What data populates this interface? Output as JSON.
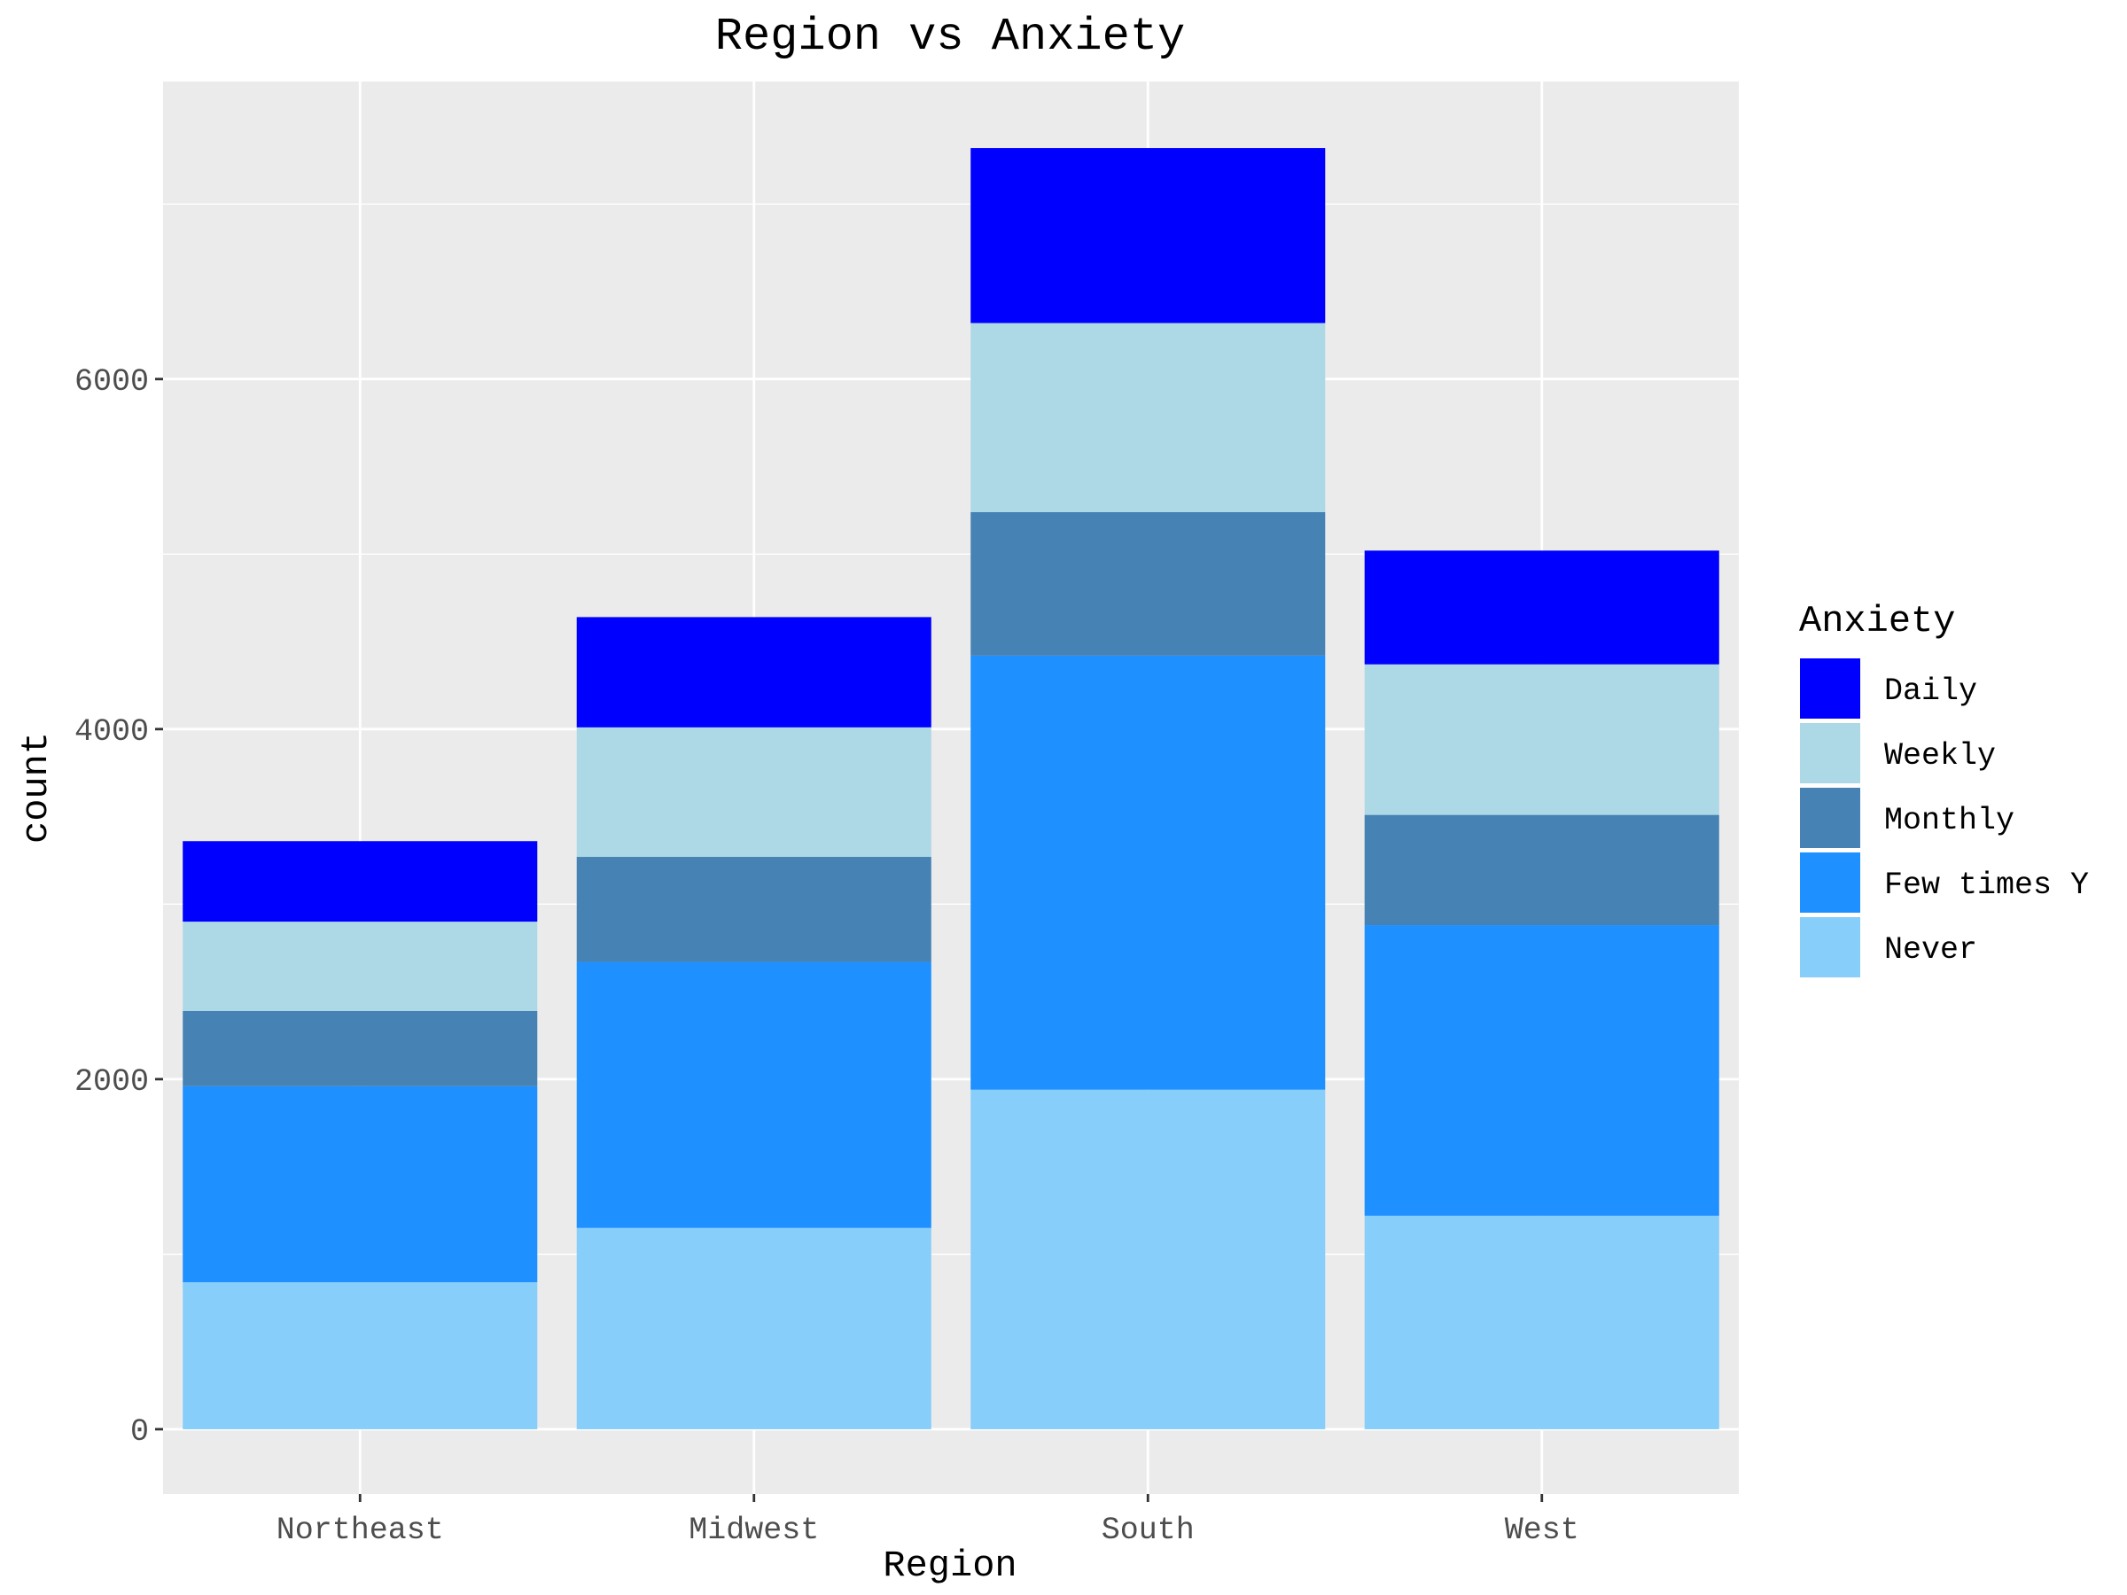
{
  "chart_data": {
    "type": "bar",
    "stacked": true,
    "title": "Region vs Anxiety",
    "xlabel": "Region",
    "ylabel": "count",
    "categories": [
      "Northeast",
      "Midwest",
      "South",
      "West"
    ],
    "ylim": [
      -370,
      7700
    ],
    "yticks": [
      0,
      2000,
      4000,
      6000
    ],
    "grid": true,
    "legend": {
      "title": "Anxiety",
      "position": "right",
      "order": [
        "Daily",
        "Weekly",
        "Monthly",
        "Few times Y",
        "Never"
      ]
    },
    "series": [
      {
        "name": "Never",
        "color": "#87CEFA",
        "values": [
          840,
          1150,
          1940,
          1220
        ]
      },
      {
        "name": "Few times Y",
        "color": "#1E90FF",
        "values": [
          1120,
          1520,
          2480,
          1660
        ]
      },
      {
        "name": "Monthly",
        "color": "#4682B4",
        "values": [
          430,
          600,
          820,
          630
        ]
      },
      {
        "name": "Weekly",
        "color": "#ADD8E6",
        "values": [
          510,
          740,
          1080,
          860
        ]
      },
      {
        "name": "Daily",
        "color": "#0000FF",
        "values": [
          460,
          630,
          1000,
          650
        ]
      }
    ]
  }
}
